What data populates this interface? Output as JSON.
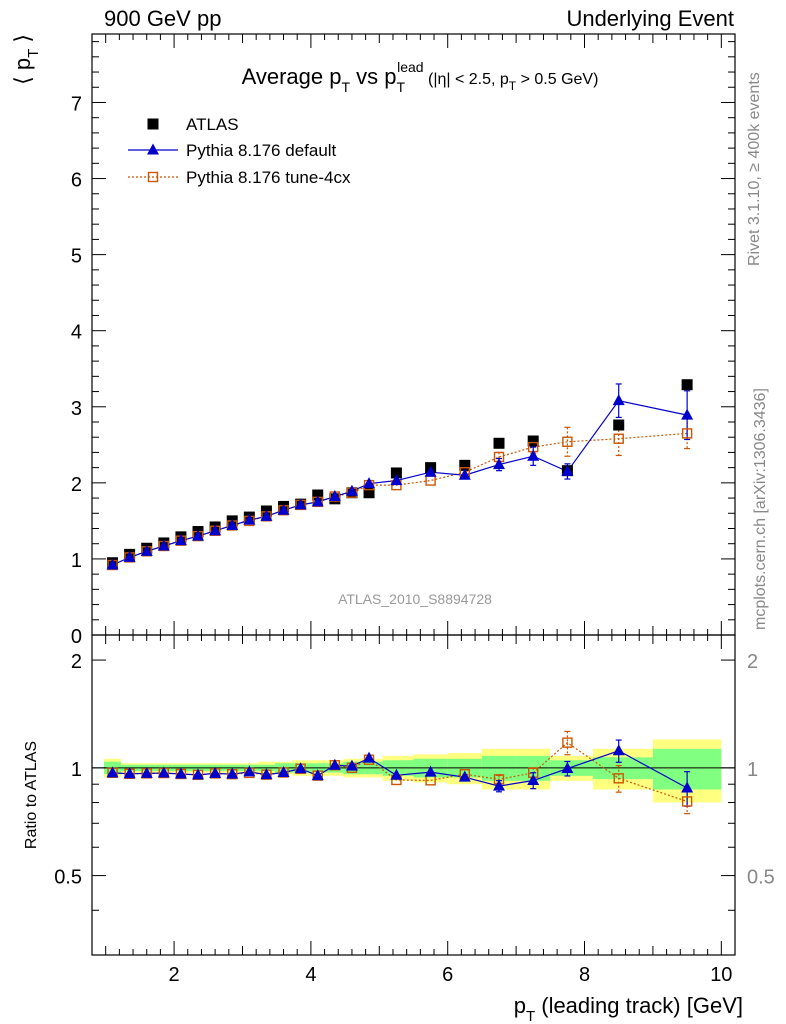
{
  "header": {
    "left": "900 GeV pp",
    "right": "Underlying Event"
  },
  "side_labels": {
    "rivet": "Rivet 3.1.10, ≥ 400k events",
    "mcplots": "mcplots.cern.ch [arXiv:1306.3436]"
  },
  "chart_data": {
    "type": "scatter",
    "title": "Average p_T vs p_T^lead (|η| < 2.5, p_T > 0.5 GeV)",
    "watermark": "ATLAS_2010_S8894728",
    "xlabel": "p_T (leading track) [GeV]",
    "ylabel_main": "⟨ p_T ⟩",
    "ylabel_ratio": "Ratio to ATLAS",
    "xlim": [
      0.8,
      10.2
    ],
    "ylim_main": [
      0,
      7.9
    ],
    "ylim_ratio": [
      0.3,
      2.35
    ],
    "ratio_log_scale": true,
    "xticks": [
      2,
      4,
      6,
      8,
      10
    ],
    "yticks_main": [
      0,
      1,
      2,
      3,
      4,
      5,
      6,
      7
    ],
    "yticks_ratio": [
      0.5,
      1,
      2
    ],
    "legend_position": "top-left",
    "x": [
      1.1,
      1.35,
      1.6,
      1.85,
      2.1,
      2.35,
      2.6,
      2.85,
      3.1,
      3.35,
      3.6,
      3.85,
      4.1,
      4.35,
      4.6,
      4.85,
      5.25,
      5.75,
      6.25,
      6.75,
      7.25,
      7.75,
      8.5,
      9.5
    ],
    "series": [
      {
        "name": "ATLAS",
        "color": "#000000",
        "marker": "filled-square",
        "values": [
          0.95,
          1.06,
          1.14,
          1.21,
          1.29,
          1.36,
          1.42,
          1.5,
          1.55,
          1.63,
          1.69,
          1.72,
          1.84,
          1.79,
          1.87,
          1.87,
          2.13,
          2.2,
          2.23,
          2.52,
          2.55,
          2.16,
          2.76,
          3.29
        ],
        "ratio_band_inner": [
          0.04,
          0.02,
          0.02,
          0.02,
          0.02,
          0.02,
          0.02,
          0.02,
          0.02,
          0.02,
          0.03,
          0.03,
          0.03,
          0.03,
          0.04,
          0.04,
          0.05,
          0.06,
          0.06,
          0.08,
          0.08,
          0.05,
          0.07,
          0.13
        ],
        "ratio_band_outer": [
          0.06,
          0.03,
          0.03,
          0.03,
          0.03,
          0.03,
          0.03,
          0.03,
          0.03,
          0.04,
          0.04,
          0.05,
          0.05,
          0.05,
          0.06,
          0.06,
          0.08,
          0.09,
          0.1,
          0.13,
          0.13,
          0.08,
          0.13,
          0.2
        ]
      },
      {
        "name": "Pythia 8.176 default",
        "color": "#0000cc",
        "marker": "filled-triangle",
        "line": "solid",
        "values": [
          0.92,
          1.02,
          1.1,
          1.17,
          1.24,
          1.3,
          1.37,
          1.44,
          1.51,
          1.56,
          1.64,
          1.71,
          1.75,
          1.82,
          1.89,
          1.99,
          2.03,
          2.14,
          2.1,
          2.24,
          2.35,
          2.15,
          3.08,
          2.89
        ],
        "errors": [
          0.01,
          0.01,
          0.01,
          0.01,
          0.01,
          0.01,
          0.01,
          0.01,
          0.01,
          0.01,
          0.01,
          0.02,
          0.02,
          0.02,
          0.03,
          0.04,
          0.03,
          0.04,
          0.05,
          0.08,
          0.12,
          0.1,
          0.22,
          0.32
        ]
      },
      {
        "name": "Pythia 8.176 tune-4cx",
        "color": "#cc5500",
        "marker": "open-square",
        "line": "dotted",
        "values": [
          0.92,
          1.02,
          1.1,
          1.17,
          1.24,
          1.3,
          1.37,
          1.44,
          1.5,
          1.56,
          1.64,
          1.71,
          1.75,
          1.82,
          1.87,
          1.97,
          1.97,
          2.03,
          2.14,
          2.34,
          2.47,
          2.54,
          2.58,
          2.65
        ],
        "errors": [
          0.01,
          0.01,
          0.01,
          0.01,
          0.01,
          0.01,
          0.01,
          0.01,
          0.01,
          0.01,
          0.01,
          0.02,
          0.02,
          0.02,
          0.03,
          0.04,
          0.03,
          0.04,
          0.05,
          0.06,
          0.08,
          0.19,
          0.22,
          0.2
        ]
      }
    ]
  }
}
